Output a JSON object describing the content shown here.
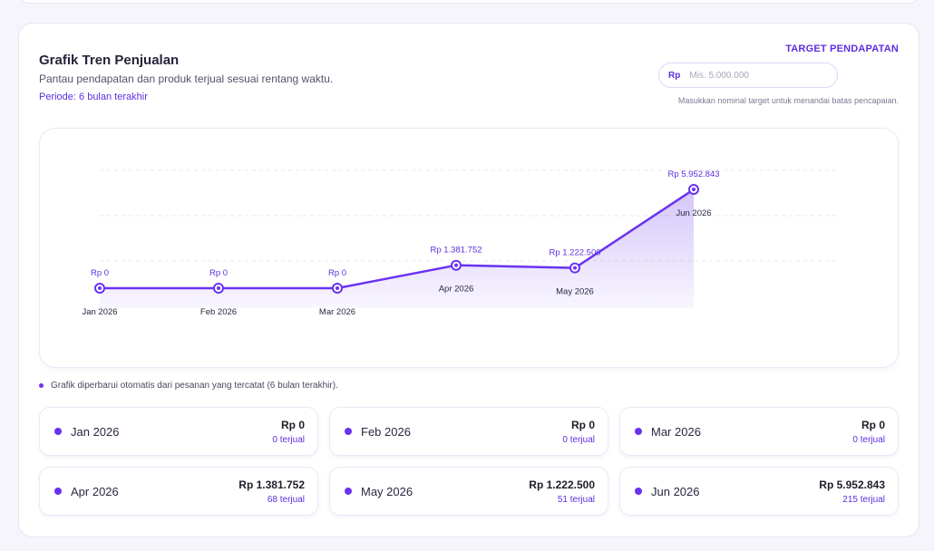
{
  "header": {
    "title": "Grafik Tren Penjualan",
    "subtitle": "Pantau pendapatan dan produk terjual sesuai rentang waktu.",
    "period": "Periode: 6 bulan terakhir"
  },
  "target": {
    "label": "TARGET PENDAPATAN",
    "prefix": "Rp",
    "placeholder": "Mis. 5.000.000",
    "hint": "Masukkan nominal target untuk menandai batas pencapaian."
  },
  "note": "Grafik diperbarui otomatis dari pesanan yang tercatat (6 bulan terakhir).",
  "colors": {
    "accent": "#6a32f0",
    "accent_text": "#5b2ee0"
  },
  "chart_data": {
    "type": "area",
    "categories": [
      "Jan 2026",
      "Feb 2026",
      "Mar 2026",
      "Apr 2026",
      "May 2026",
      "Jun 2026"
    ],
    "values": [
      0,
      0,
      0,
      1381752,
      1222500,
      5952843
    ],
    "value_labels": [
      "Rp 0",
      "Rp 0",
      "Rp 0",
      "Rp 1.381.752",
      "Rp 1.222.500",
      "Rp 5.952.843"
    ],
    "grid": true,
    "legend": "none"
  },
  "months": [
    {
      "name": "Jan 2026",
      "value": "Rp 0",
      "sold": "0 terjual"
    },
    {
      "name": "Feb 2026",
      "value": "Rp 0",
      "sold": "0 terjual"
    },
    {
      "name": "Mar 2026",
      "value": "Rp 0",
      "sold": "0 terjual"
    },
    {
      "name": "Apr 2026",
      "value": "Rp 1.381.752",
      "sold": "68 terjual"
    },
    {
      "name": "May 2026",
      "value": "Rp 1.222.500",
      "sold": "51 terjual"
    },
    {
      "name": "Jun 2026",
      "value": "Rp 5.952.843",
      "sold": "215 terjual"
    }
  ]
}
